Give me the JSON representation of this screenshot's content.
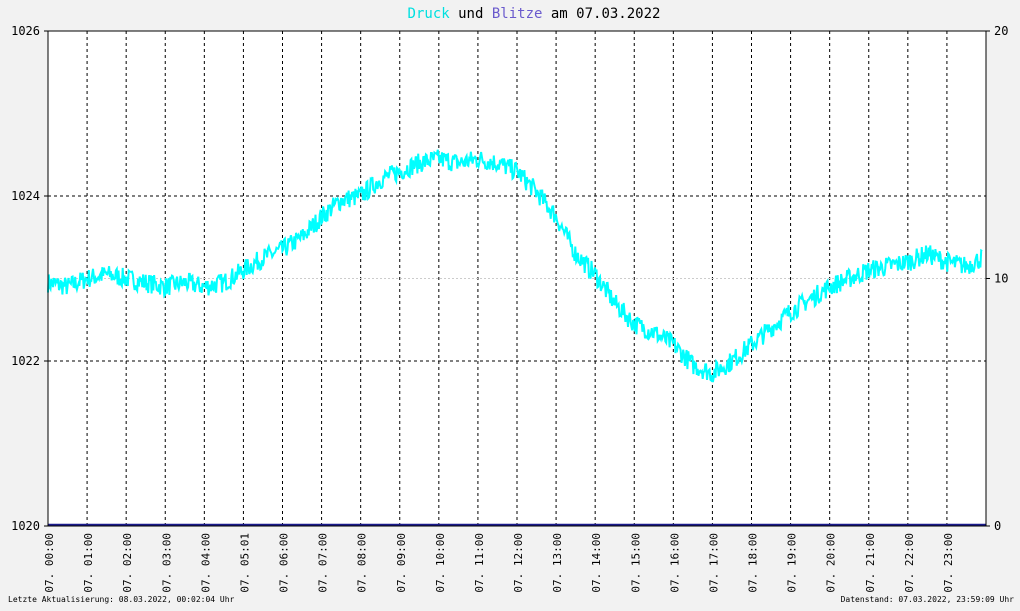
{
  "title": {
    "part1": "Druck",
    "part2": " und ",
    "part3": "Blitze",
    "part4": " am 07.03.2022",
    "color1": "#00e0e0",
    "color3": "#6a5acd"
  },
  "footer": {
    "left": "Letzte Aktualisierung: 08.03.2022, 00:02:04 Uhr",
    "right": "Datenstand: 07.03.2022, 23:59:09 Uhr"
  },
  "chart_data": {
    "type": "line",
    "x_tick_labels": [
      "07. 00:00",
      "07. 01:00",
      "07. 02:00",
      "07. 03:00",
      "07. 04:00",
      "07. 05:01",
      "07. 06:00",
      "07. 07:00",
      "07. 08:00",
      "07. 09:00",
      "07. 10:00",
      "07. 11:00",
      "07. 12:00",
      "07. 13:00",
      "07. 14:00",
      "07. 15:00",
      "07. 16:00",
      "07. 17:00",
      "07. 18:00",
      "07. 19:00",
      "07. 20:00",
      "07. 21:00",
      "07. 22:00",
      "07. 23:00"
    ],
    "y_left": {
      "ylim": [
        1020,
        1026
      ],
      "ticks": [
        "1020",
        "1022",
        "1024",
        "1026"
      ]
    },
    "y_right": {
      "ylim": [
        0,
        20
      ],
      "ticks": [
        "0",
        "10",
        "20"
      ]
    },
    "series": [
      {
        "color": "#00ffff",
        "axis": "left",
        "x": [
          0,
          0.5,
          1,
          1.5,
          2,
          2.5,
          3,
          3.5,
          4,
          4.5,
          5,
          5.5,
          6,
          6.5,
          7,
          7.5,
          8,
          8.5,
          9,
          9.5,
          10,
          10.5,
          11,
          11.5,
          12,
          12.5,
          13,
          13.5,
          14,
          14.5,
          15,
          15.5,
          16,
          16.5,
          17,
          17.5,
          18,
          18.5,
          19,
          19.5,
          20,
          20.5,
          21,
          21.5,
          22,
          22.5,
          23,
          23.5,
          23.9
        ],
        "values": [
          1022.95,
          1022.9,
          1023.0,
          1023.05,
          1023.0,
          1022.95,
          1022.9,
          1022.95,
          1022.9,
          1022.95,
          1023.1,
          1023.25,
          1023.35,
          1023.5,
          1023.75,
          1023.95,
          1024.0,
          1024.2,
          1024.3,
          1024.4,
          1024.45,
          1024.4,
          1024.45,
          1024.4,
          1024.3,
          1024.05,
          1023.75,
          1023.3,
          1023.05,
          1022.7,
          1022.45,
          1022.35,
          1022.2,
          1021.95,
          1021.85,
          1022.0,
          1022.2,
          1022.4,
          1022.6,
          1022.75,
          1022.9,
          1023.0,
          1023.1,
          1023.15,
          1023.2,
          1023.3,
          1023.2,
          1023.15,
          1023.25
        ],
        "noise_amplitude": 0.12
      },
      {
        "color": "#1a1a8c",
        "axis": "right",
        "x": [
          0,
          23.99
        ],
        "values": [
          0,
          0
        ]
      }
    ],
    "grid": true,
    "legend": "none"
  }
}
